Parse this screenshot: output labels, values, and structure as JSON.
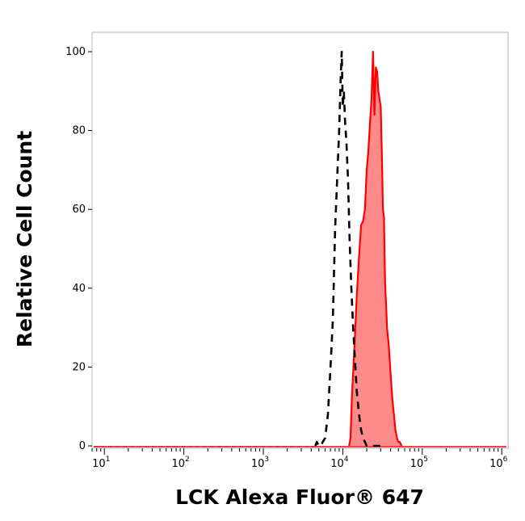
{
  "chart_data": {
    "type": "area",
    "title": "",
    "xlabel": "LCK Alexa Fluor® 647",
    "ylabel": "Relative Cell Count",
    "xscale": "log",
    "xlim": [
      7,
      1200000
    ],
    "ylim": [
      0,
      100
    ],
    "grid": false,
    "x_ticks": [
      {
        "base": "10",
        "exp": "1",
        "value": 10
      },
      {
        "base": "10",
        "exp": "2",
        "value": 100
      },
      {
        "base": "10",
        "exp": "3",
        "value": 1000
      },
      {
        "base": "10",
        "exp": "4",
        "value": 10000
      },
      {
        "base": "10",
        "exp": "5",
        "value": 100000
      },
      {
        "base": "10",
        "exp": "6",
        "value": 1000000
      }
    ],
    "y_ticks": [
      {
        "label": "0",
        "value": 0
      },
      {
        "label": "20",
        "value": 20
      },
      {
        "label": "40",
        "value": 40
      },
      {
        "label": "60",
        "value": 60
      },
      {
        "label": "80",
        "value": 80
      },
      {
        "label": "100",
        "value": 100
      }
    ],
    "series": [
      {
        "style": "dashed",
        "color": "#000000",
        "fill": "none",
        "x": [
          4500,
          4700,
          5000,
          5300,
          5600,
          6000,
          6500,
          7000,
          7500,
          8000,
          8500,
          9000,
          9400,
          9700,
          10000,
          10300,
          10700,
          11100,
          11600,
          12200,
          12800,
          13500,
          14200,
          15000,
          16000,
          17000,
          18000,
          19000,
          20000,
          21000,
          22000,
          23000,
          24000,
          25000,
          26000,
          27000,
          28000,
          30000
        ],
        "y": [
          0,
          1,
          0,
          0,
          1,
          2,
          8,
          20,
          32,
          55,
          68,
          80,
          93,
          100,
          86,
          90,
          82,
          77,
          68,
          52,
          40,
          30,
          22,
          14,
          8,
          4,
          2,
          1,
          0,
          0,
          0,
          0,
          0,
          0,
          0,
          0,
          0,
          0
        ]
      },
      {
        "style": "solid",
        "color": "#ff0000",
        "fill": "#ff8a8a",
        "x": [
          12000,
          12500,
          13000,
          14000,
          15000,
          16000,
          17000,
          18000,
          19000,
          20000,
          21000,
          22000,
          23000,
          24000,
          25000,
          26000,
          27000,
          28000,
          29000,
          30000,
          31000,
          32000,
          33000,
          34000,
          36000,
          38000,
          40000,
          42000,
          44000,
          46000,
          48000,
          50000,
          52000,
          55000
        ],
        "y": [
          0,
          2,
          12,
          25,
          38,
          48,
          56,
          57,
          60,
          70,
          75,
          82,
          88,
          100,
          84,
          96,
          95,
          90,
          88,
          86,
          74,
          60,
          58,
          42,
          30,
          25,
          18,
          12,
          8,
          4,
          2,
          1,
          1,
          0
        ]
      }
    ]
  }
}
